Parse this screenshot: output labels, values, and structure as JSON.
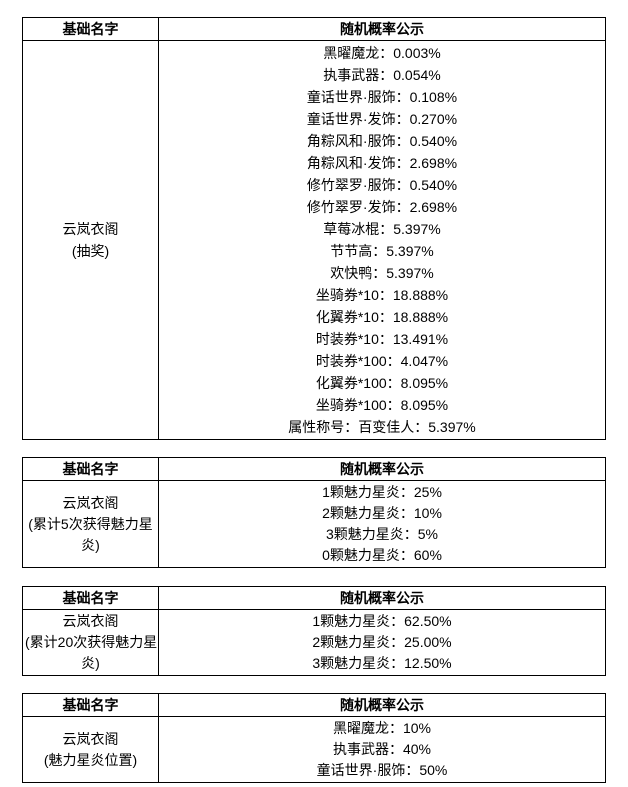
{
  "colors": {
    "background": "#ffffff",
    "border": "#000000",
    "text": "#000000"
  },
  "tables": [
    {
      "headers": {
        "name": "基础名字",
        "probability": "随机概率公示"
      },
      "name_lines": [
        "云岚衣阁",
        "(抽奖)"
      ],
      "items": [
        "黑曜魔龙：0.003%",
        "执事武器：0.054%",
        "童话世界·服饰：0.108%",
        "童话世界·发饰：0.270%",
        "角粽风和·服饰：0.540%",
        "角粽风和·发饰：2.698%",
        "修竹翠罗·服饰：0.540%",
        "修竹翠罗·发饰：2.698%",
        "草莓冰棍：5.397%",
        "节节高：5.397%",
        "欢快鸭：5.397%",
        "坐骑券*10：18.888%",
        "化翼券*10：18.888%",
        "时装券*10：13.491%",
        "时装券*100：4.047%",
        "化翼券*100：8.095%",
        "坐骑券*100：8.095%",
        "属性称号：百变佳人：5.397%"
      ]
    },
    {
      "headers": {
        "name": "基础名字",
        "probability": "随机概率公示"
      },
      "name_lines": [
        "云岚衣阁",
        "(累计5次获得魅力星",
        "炎)"
      ],
      "items": [
        "1颗魅力星炎：25%",
        "2颗魅力星炎：10%",
        "3颗魅力星炎：5%",
        "0颗魅力星炎：60%"
      ]
    },
    {
      "headers": {
        "name": "基础名字",
        "probability": "随机概率公示"
      },
      "name_lines": [
        "云岚衣阁",
        "(累计20次获得魅力星",
        "炎)"
      ],
      "items": [
        "1颗魅力星炎：62.50%",
        "2颗魅力星炎：25.00%",
        "3颗魅力星炎：12.50%"
      ]
    },
    {
      "headers": {
        "name": "基础名字",
        "probability": "随机概率公示"
      },
      "name_lines": [
        "云岚衣阁",
        "(魅力星炎位置)"
      ],
      "items": [
        "黑曜魔龙：10%",
        "执事武器：40%",
        "童话世界·服饰：50%"
      ]
    }
  ]
}
